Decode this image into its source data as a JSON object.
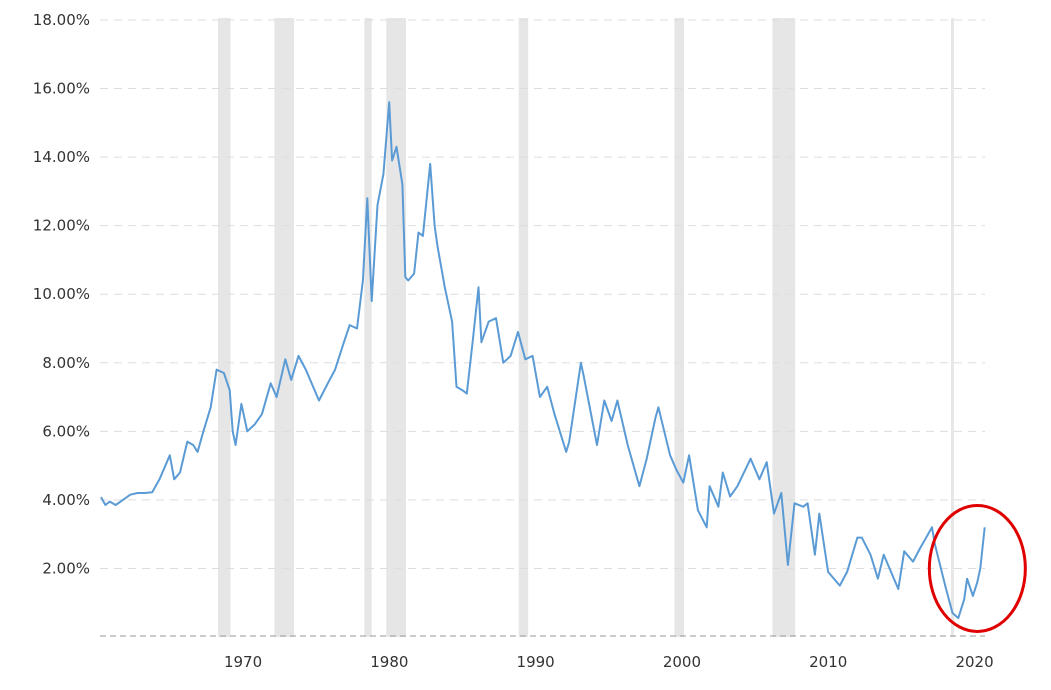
{
  "chart_data": {
    "type": "line",
    "title": "",
    "xlabel": "",
    "ylabel": "",
    "xlim": [
      1962.0,
      2022.4
    ],
    "ylim": [
      0,
      18
    ],
    "y_ticks": [
      2,
      4,
      6,
      8,
      10,
      12,
      14,
      16,
      18
    ],
    "y_tick_labels": [
      "2.00%",
      "4.00%",
      "6.00%",
      "8.00%",
      "10.00%",
      "12.00%",
      "14.00%",
      "16.00%",
      "18.00%"
    ],
    "x_ticks": [
      1970,
      1980,
      1990,
      2000,
      2010,
      2020
    ],
    "x_tick_labels": [
      "1970",
      "1980",
      "1990",
      "2000",
      "2010",
      "2020"
    ],
    "grid": "horizontal dashed",
    "line_color": "#5b9bd5",
    "recession_color": "#e6e6e6",
    "annotation_color": "#e00000",
    "recessions": [
      [
        1970.0,
        1970.85
      ],
      [
        1973.85,
        1975.2
      ],
      [
        1980.0,
        1980.5
      ],
      [
        1981.5,
        1982.85
      ],
      [
        1990.55,
        1991.2
      ],
      [
        2001.2,
        2001.85
      ],
      [
        2007.9,
        2009.45
      ],
      [
        2020.1,
        2020.3
      ]
    ],
    "annotation": {
      "shape": "ellipse",
      "center": [
        2021.9,
        2.0
      ],
      "note": "circled recent rise"
    },
    "series": [
      {
        "points": [
          [
            1962.0,
            4.08
          ],
          [
            1962.3,
            3.85
          ],
          [
            1962.6,
            3.95
          ],
          [
            1963.0,
            3.85
          ],
          [
            1963.5,
            4.0
          ],
          [
            1964.0,
            4.15
          ],
          [
            1964.5,
            4.2
          ],
          [
            1965.0,
            4.2
          ],
          [
            1965.5,
            4.22
          ],
          [
            1966.0,
            4.6
          ],
          [
            1966.7,
            5.3
          ],
          [
            1967.0,
            4.6
          ],
          [
            1967.4,
            4.8
          ],
          [
            1967.9,
            5.7
          ],
          [
            1968.3,
            5.6
          ],
          [
            1968.6,
            5.4
          ],
          [
            1969.0,
            6.0
          ],
          [
            1969.5,
            6.7
          ],
          [
            1969.9,
            7.8
          ],
          [
            1970.4,
            7.7
          ],
          [
            1970.8,
            7.2
          ],
          [
            1971.0,
            6.0
          ],
          [
            1971.2,
            5.6
          ],
          [
            1971.6,
            6.8
          ],
          [
            1972.0,
            6.0
          ],
          [
            1972.5,
            6.2
          ],
          [
            1973.0,
            6.5
          ],
          [
            1973.6,
            7.4
          ],
          [
            1974.0,
            7.0
          ],
          [
            1974.6,
            8.1
          ],
          [
            1975.0,
            7.5
          ],
          [
            1975.5,
            8.2
          ],
          [
            1976.0,
            7.8
          ],
          [
            1976.9,
            6.9
          ],
          [
            1977.5,
            7.4
          ],
          [
            1978.0,
            7.8
          ],
          [
            1978.6,
            8.6
          ],
          [
            1979.0,
            9.1
          ],
          [
            1979.5,
            9.0
          ],
          [
            1979.9,
            10.4
          ],
          [
            1980.2,
            12.8
          ],
          [
            1980.5,
            9.8
          ],
          [
            1980.9,
            12.6
          ],
          [
            1981.3,
            13.5
          ],
          [
            1981.7,
            15.6
          ],
          [
            1981.9,
            13.9
          ],
          [
            1982.2,
            14.3
          ],
          [
            1982.6,
            13.2
          ],
          [
            1982.8,
            10.5
          ],
          [
            1983.0,
            10.4
          ],
          [
            1983.4,
            10.6
          ],
          [
            1983.7,
            11.8
          ],
          [
            1984.0,
            11.7
          ],
          [
            1984.5,
            13.8
          ],
          [
            1984.8,
            12.0
          ],
          [
            1985.0,
            11.4
          ],
          [
            1985.5,
            10.2
          ],
          [
            1986.0,
            9.2
          ],
          [
            1986.3,
            7.3
          ],
          [
            1986.7,
            7.2
          ],
          [
            1987.0,
            7.1
          ],
          [
            1987.4,
            8.6
          ],
          [
            1987.8,
            10.2
          ],
          [
            1988.0,
            8.6
          ],
          [
            1988.5,
            9.2
          ],
          [
            1989.0,
            9.3
          ],
          [
            1989.5,
            8.0
          ],
          [
            1990.0,
            8.2
          ],
          [
            1990.5,
            8.9
          ],
          [
            1991.0,
            8.1
          ],
          [
            1991.5,
            8.2
          ],
          [
            1992.0,
            7.0
          ],
          [
            1992.5,
            7.3
          ],
          [
            1993.0,
            6.5
          ],
          [
            1993.8,
            5.4
          ],
          [
            1994.0,
            5.7
          ],
          [
            1994.8,
            8.0
          ],
          [
            1995.0,
            7.6
          ],
          [
            1995.9,
            5.6
          ],
          [
            1996.4,
            6.9
          ],
          [
            1996.9,
            6.3
          ],
          [
            1997.3,
            6.9
          ],
          [
            1998.0,
            5.6
          ],
          [
            1998.8,
            4.4
          ],
          [
            1999.3,
            5.2
          ],
          [
            1999.9,
            6.4
          ],
          [
            2000.1,
            6.7
          ],
          [
            2000.9,
            5.3
          ],
          [
            2001.3,
            4.9
          ],
          [
            2001.8,
            4.5
          ],
          [
            2002.2,
            5.3
          ],
          [
            2002.8,
            3.7
          ],
          [
            2003.4,
            3.2
          ],
          [
            2003.6,
            4.4
          ],
          [
            2004.2,
            3.8
          ],
          [
            2004.5,
            4.8
          ],
          [
            2005.0,
            4.1
          ],
          [
            2005.5,
            4.4
          ],
          [
            2006.4,
            5.2
          ],
          [
            2007.0,
            4.6
          ],
          [
            2007.5,
            5.1
          ],
          [
            2008.0,
            3.6
          ],
          [
            2008.5,
            4.2
          ],
          [
            2008.95,
            2.1
          ],
          [
            2009.4,
            3.9
          ],
          [
            2010.0,
            3.8
          ],
          [
            2010.3,
            3.9
          ],
          [
            2010.8,
            2.4
          ],
          [
            2011.1,
            3.6
          ],
          [
            2011.7,
            1.9
          ],
          [
            2012.5,
            1.5
          ],
          [
            2013.0,
            1.9
          ],
          [
            2013.7,
            2.9
          ],
          [
            2014.0,
            2.9
          ],
          [
            2014.6,
            2.4
          ],
          [
            2015.1,
            1.7
          ],
          [
            2015.5,
            2.4
          ],
          [
            2016.5,
            1.4
          ],
          [
            2016.9,
            2.5
          ],
          [
            2017.5,
            2.2
          ],
          [
            2018.0,
            2.6
          ],
          [
            2018.8,
            3.2
          ],
          [
            2019.0,
            2.7
          ],
          [
            2019.7,
            1.5
          ],
          [
            2020.2,
            0.7
          ],
          [
            2020.6,
            0.55
          ],
          [
            2021.0,
            1.1
          ],
          [
            2021.2,
            1.7
          ],
          [
            2021.6,
            1.2
          ],
          [
            2021.9,
            1.6
          ],
          [
            2022.1,
            2.0
          ],
          [
            2022.4,
            3.2
          ]
        ]
      }
    ]
  }
}
